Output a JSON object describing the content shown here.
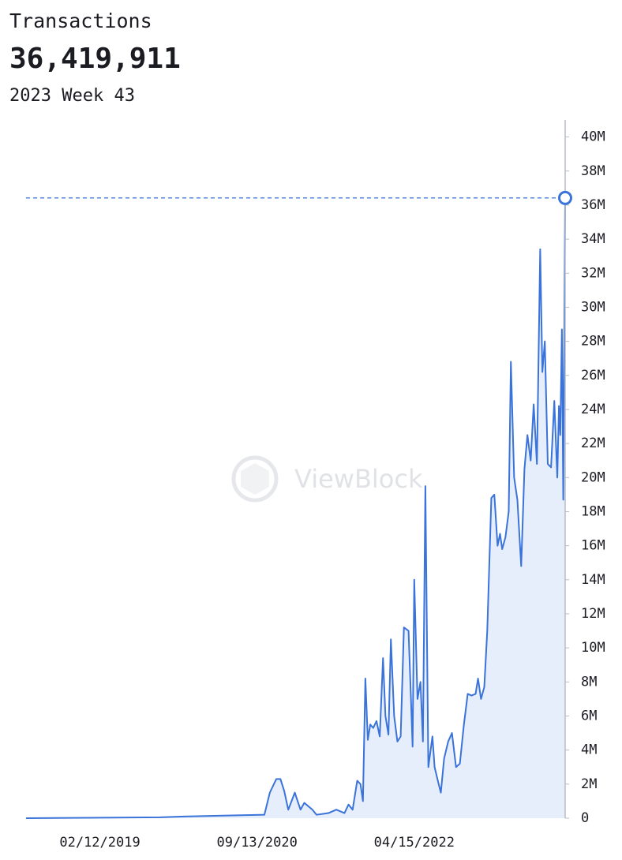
{
  "chart_data": {
    "type": "line",
    "title": "Transactions",
    "highlight": {
      "label": "36,419,911",
      "period": "2023 Week 43"
    },
    "watermark": "ViewBlock",
    "x": [
      "05/16/2018",
      "09/22/2019",
      "12/19/2019",
      "10/10/2020",
      "10/30/2020",
      "11/23/2020",
      "12/08/2020",
      "12/22/2020",
      "01/06/2021",
      "01/30/2021",
      "02/20/2021",
      "03/06/2021",
      "04/05/2021",
      "04/20/2021",
      "06/03/2021",
      "07/02/2021",
      "08/01/2021",
      "08/16/2021",
      "08/31/2021",
      "09/17/2021",
      "09/29/2021",
      "10/08/2021",
      "10/17/2021",
      "10/26/2021",
      "11/04/2021",
      "11/15/2021",
      "11/27/2021",
      "12/09/2021",
      "12/21/2021",
      "12/30/2021",
      "01/10/2022",
      "01/19/2022",
      "01/31/2022",
      "02/12/2022",
      "02/24/2022",
      "03/08/2022",
      "03/25/2022",
      "04/03/2022",
      "04/09/2022",
      "04/15/2022",
      "04/27/2022",
      "05/08/2022",
      "05/17/2022",
      "05/26/2022",
      "06/06/2022",
      "06/21/2022",
      "06/29/2022",
      "07/11/2022",
      "07/22/2022",
      "08/03/2022",
      "08/18/2022",
      "09/01/2022",
      "09/16/2022",
      "09/30/2022",
      "10/15/2022",
      "10/29/2022",
      "11/12/2022",
      "11/27/2022",
      "12/06/2022",
      "12/17/2022",
      "12/29/2022",
      "01/09/2023",
      "01/24/2023",
      "02/04/2023",
      "02/16/2023",
      "02/25/2023",
      "03/05/2023",
      "03/17/2023",
      "03/29/2023",
      "04/06/2023",
      "04/18/2023",
      "04/30/2023",
      "05/14/2023",
      "05/26/2023",
      "06/06/2023",
      "06/18/2023",
      "06/29/2023",
      "07/11/2023",
      "07/23/2023",
      "07/31/2023",
      "08/09/2023",
      "08/20/2023",
      "09/01/2023",
      "09/13/2023",
      "09/24/2023",
      "09/30/2023",
      "10/05/2023",
      "10/11/2023",
      "10/16/2023",
      "10/23/2023"
    ],
    "series": [
      {
        "name": "Transactions",
        "color": "#3a73d9",
        "fill": "#e6eefb",
        "values": [
          0,
          50000,
          100000,
          200000,
          1500000,
          2300000,
          2300000,
          1600000,
          500000,
          1500000,
          500000,
          900000,
          500000,
          200000,
          300000,
          500000,
          300000,
          800000,
          500000,
          2200000,
          2000000,
          1000000,
          8200000,
          4600000,
          5500000,
          5300000,
          5700000,
          4800000,
          9400000,
          6000000,
          4900000,
          10500000,
          6000000,
          4500000,
          4800000,
          11200000,
          11000000,
          7000000,
          4200000,
          14000000,
          7000000,
          8000000,
          4500000,
          19500000,
          3000000,
          4800000,
          3000000,
          2200000,
          1500000,
          3500000,
          4500000,
          5000000,
          3000000,
          3200000,
          5500000,
          7300000,
          7200000,
          7300000,
          8200000,
          7000000,
          7700000,
          11000000,
          18800000,
          19000000,
          16000000,
          16700000,
          15800000,
          16500000,
          18000000,
          26800000,
          20000000,
          18700000,
          14800000,
          20500000,
          22500000,
          21000000,
          24300000,
          20800000,
          33400000,
          26200000,
          28000000,
          20800000,
          20600000,
          24500000,
          20000000,
          24200000,
          22500000,
          28700000,
          18700000,
          36419911
        ]
      }
    ],
    "xlim": [
      "05/16/2018",
      "10/23/2023"
    ],
    "xticks": [
      "02/12/2019",
      "09/13/2020",
      "04/15/2022"
    ],
    "ylim": [
      0,
      41000000
    ],
    "yticks": [
      0,
      {
        "value": 2000000,
        "label": "2M"
      },
      {
        "value": 4000000,
        "label": "4M"
      },
      {
        "value": 6000000,
        "label": "6M"
      },
      {
        "value": 8000000,
        "label": "8M"
      },
      {
        "value": 10000000,
        "label": "10M"
      },
      {
        "value": 12000000,
        "label": "12M"
      },
      {
        "value": 14000000,
        "label": "14M"
      },
      {
        "value": 16000000,
        "label": "16M"
      },
      {
        "value": 18000000,
        "label": "18M"
      },
      {
        "value": 20000000,
        "label": "20M"
      },
      {
        "value": 22000000,
        "label": "22M"
      },
      {
        "value": 24000000,
        "label": "24M"
      },
      {
        "value": 26000000,
        "label": "26M"
      },
      {
        "value": 28000000,
        "label": "28M"
      },
      {
        "value": 30000000,
        "label": "30M"
      },
      {
        "value": 32000000,
        "label": "32M"
      },
      {
        "value": 34000000,
        "label": "34M"
      },
      {
        "value": 36000000,
        "label": "36M"
      },
      {
        "value": 38000000,
        "label": "38M"
      },
      {
        "value": 40000000,
        "label": "40M"
      }
    ],
    "grid": false
  }
}
